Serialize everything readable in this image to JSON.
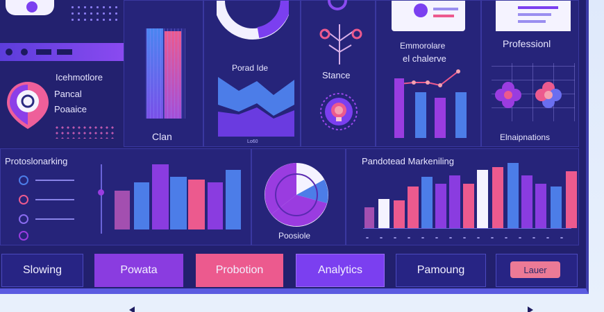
{
  "colors": {
    "background": "#22206e",
    "panel": "#26247a",
    "purple": "#7b3ff0",
    "violet": "#9a3ce0",
    "pink": "#ec5a8e",
    "blue": "#4c7de8",
    "light": "#f5f3ff"
  },
  "top_left": {
    "icon": "location-pin-icon",
    "title": "Icehmotlore",
    "line1": "Pancal",
    "line2": "Poaaice"
  },
  "clan_panel": {
    "label": "Clan"
  },
  "center_top": {
    "title": "Porad Ide",
    "caption": "Lo60"
  },
  "tree_panel": {
    "label": "Stance",
    "icon": "lightbulb-icon"
  },
  "challenge_panel": {
    "line1": "Emmorolare",
    "line2": "el chalerve"
  },
  "professional_panel": {
    "title": "Professionl",
    "caption": "Elnaipnations"
  },
  "bottom_left": {
    "title": "Protoslonarking"
  },
  "pie_panel": {
    "label": "Poosiole"
  },
  "marketing_panel": {
    "title": "Pandotead Markeniling"
  },
  "tiles": [
    {
      "label": "Slowing"
    },
    {
      "label": "Powata"
    },
    {
      "label": "Probotion"
    },
    {
      "label": "Analytics"
    },
    {
      "label": "Pamoung"
    },
    {
      "label": "Lauer"
    }
  ]
}
